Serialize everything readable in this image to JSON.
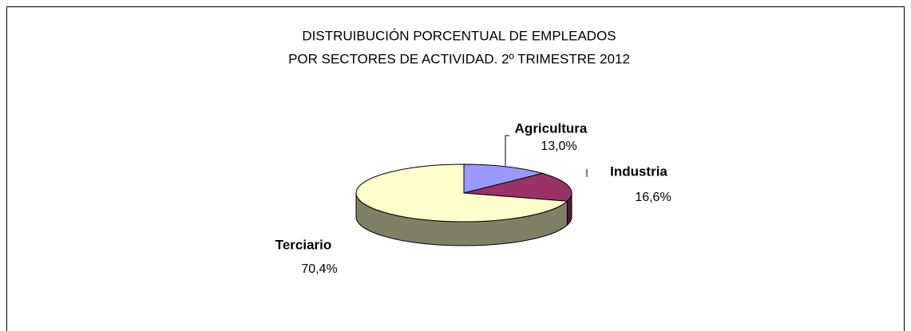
{
  "chart_data": {
    "type": "pie",
    "title": [
      "DISTRUIBUCIÓN PORCENTUAL DE EMPLEADOS",
      "POR SECTORES DE ACTIVIDAD. 2º TRIMESTRE 2012"
    ],
    "categories": [
      "Agricultura",
      "Industria",
      "Terciario"
    ],
    "values": [
      13.0,
      16.6,
      70.4
    ],
    "value_labels": [
      "13,0%",
      "16,6%",
      "70,4%"
    ],
    "colors": [
      "#9999ff",
      "#993366",
      "#ffffcc"
    ]
  }
}
